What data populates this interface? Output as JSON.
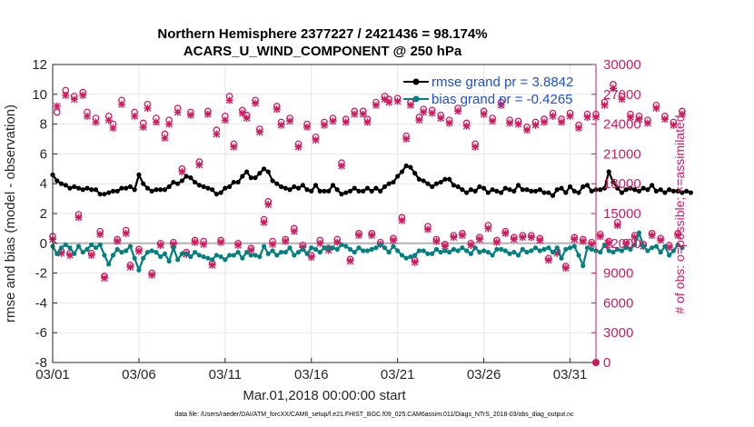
{
  "chart_data": {
    "type": "line",
    "title_line1": "Northern Hemisphere 2377227 / 2421436 = 98.174%",
    "title_line2": "ACARS_U_WIND_COMPONENT @ 250 hPa",
    "xlabel": "Mar.01,2018 00:00:00 start",
    "ylabel": "rmse and bias (model - observation)",
    "y2label": "# of obs: o=possible; ×=assimilated",
    "footnote": "data file: /Users/raeder/DAI/ATM_forcXX/CAM6_setup/f.e21.FHIST_BGC.f09_025.CAM6assim.011/Diags_NTrS_2018-03/obs_diag_output.nc",
    "xlim": [
      0,
      31.5
    ],
    "ylim": [
      -8,
      12
    ],
    "y2lim": [
      0,
      30000
    ],
    "xticks": [
      0,
      5,
      10,
      15,
      20,
      25,
      30
    ],
    "xtick_labels": [
      "03/01",
      "03/06",
      "03/11",
      "03/16",
      "03/21",
      "03/26",
      "03/31"
    ],
    "yticks": [
      -8,
      -6,
      -4,
      -2,
      0,
      2,
      4,
      6,
      8,
      10,
      12
    ],
    "ytick_labels": [
      "-8",
      "-6",
      "-4",
      "-2",
      "0",
      "2",
      "4",
      "6",
      "8",
      "10",
      "12"
    ],
    "y2ticks": [
      0,
      3000,
      6000,
      9000,
      12000,
      15000,
      18000,
      21000,
      24000,
      27000,
      30000
    ],
    "y2tick_labels": [
      "0",
      "3000",
      "6000",
      "9000",
      "12000",
      "15000",
      "18000",
      "21000",
      "24000",
      "27000",
      "30000"
    ],
    "legend": [
      "rmse grand pr = 3.8842",
      "bias grand pr = -0.4265"
    ],
    "colors": {
      "rmse": "#000000",
      "bias": "#008080",
      "obs": "#d11a5e",
      "axis": "#262626",
      "grid": "#e6e6e6",
      "zero": "#b3b3b3"
    },
    "time_step_days": 0.25,
    "series": [
      {
        "name": "rmse",
        "values": [
          4.6,
          4.2,
          4.0,
          3.9,
          3.7,
          3.8,
          3.7,
          3.6,
          3.7,
          3.6,
          3.6,
          3.3,
          3.3,
          3.4,
          3.5,
          3.5,
          3.7,
          3.7,
          3.8,
          3.6,
          4.6,
          4.0,
          3.7,
          3.5,
          3.6,
          3.6,
          3.6,
          3.8,
          4.1,
          4.0,
          4.2,
          4.5,
          4.4,
          4.1,
          3.9,
          3.8,
          3.7,
          3.6,
          3.3,
          3.4,
          3.7,
          3.8,
          4.1,
          4.1,
          4.5,
          4.8,
          4.4,
          4.4,
          4.7,
          5.0,
          4.8,
          4.2,
          4.0,
          3.8,
          3.7,
          3.6,
          3.8,
          3.7,
          3.9,
          3.6,
          3.5,
          3.9,
          3.5,
          3.5,
          3.5,
          3.9,
          3.6,
          3.3,
          3.4,
          3.5,
          3.7,
          3.5,
          3.5,
          3.7,
          3.5,
          3.7,
          3.5,
          3.8,
          4.0,
          4.1,
          4.5,
          4.8,
          5.2,
          5.1,
          4.7,
          4.3,
          4.2,
          4.0,
          3.8,
          4.0,
          4.1,
          4.3,
          4.3,
          3.9,
          3.8,
          3.6,
          3.4,
          3.6,
          3.5,
          3.8,
          3.7,
          3.4,
          3.6,
          3.5,
          3.4,
          3.7,
          3.6,
          3.5,
          3.9,
          3.6,
          3.6,
          3.5,
          3.5,
          3.6,
          3.4,
          3.4,
          3.2,
          3.6,
          3.7,
          3.4,
          3.8,
          3.5,
          3.4,
          3.8,
          3.9,
          3.5,
          3.6,
          3.6,
          3.7,
          4.8,
          4.1,
          3.7,
          3.4,
          3.6,
          3.7,
          3.6,
          3.5,
          3.7,
          3.6,
          3.9,
          3.5,
          3.6,
          3.4,
          3.6,
          3.5,
          3.5,
          3.4,
          3.5,
          3.4
        ]
      },
      {
        "name": "bias",
        "values": [
          -0.2,
          -0.7,
          -0.3,
          -0.1,
          -0.3,
          -0.7,
          -0.2,
          -0.6,
          -0.4,
          -0.1,
          -0.3,
          -0.1,
          -0.8,
          -1.4,
          -0.8,
          -0.4,
          -0.6,
          -0.5,
          -0.2,
          -1.0,
          -1.8,
          -1.0,
          -0.6,
          -0.5,
          -0.6,
          -0.9,
          -0.7,
          -1.2,
          -0.3,
          -1.1,
          -0.7,
          -0.7,
          -0.9,
          -0.6,
          -0.8,
          -0.9,
          -1.0,
          -1.1,
          -0.8,
          -0.9,
          -1.1,
          -0.8,
          -0.8,
          -0.6,
          -1.0,
          -0.6,
          -0.8,
          -0.8,
          -0.9,
          -0.2,
          -0.7,
          -0.5,
          -0.8,
          -0.6,
          -0.6,
          -0.3,
          -0.8,
          -0.6,
          -0.4,
          -0.7,
          -0.3,
          -0.4,
          -0.6,
          -0.3,
          -0.3,
          -0.3,
          -0.4,
          -0.1,
          -0.2,
          -0.4,
          -0.6,
          -0.3,
          -0.5,
          -0.5,
          -0.4,
          -0.3,
          -0.1,
          -0.3,
          -0.6,
          -0.2,
          -0.5,
          -0.8,
          -1.0,
          -0.9,
          -0.8,
          -0.5,
          -0.5,
          -0.7,
          -0.7,
          -0.4,
          -0.6,
          -0.5,
          -0.6,
          -0.4,
          -0.5,
          -0.3,
          -0.5,
          -0.7,
          -0.3,
          -0.6,
          -0.5,
          -0.6,
          -0.8,
          -0.4,
          -0.4,
          -0.5,
          -0.7,
          -0.6,
          -0.8,
          -0.4,
          -0.6,
          -0.5,
          -0.3,
          -0.5,
          -0.4,
          -0.3,
          -0.6,
          -0.3,
          -1.0,
          -0.4,
          -0.3,
          -0.2,
          -0.8,
          -1.5,
          -0.3,
          -0.4,
          -0.5,
          -0.6,
          -0.1,
          -0.5,
          -0.6,
          -0.4,
          -0.5,
          -0.3,
          -0.4,
          -0.1,
          0.7,
          -0.2,
          -0.5,
          -0.3,
          -0.2,
          -0.6,
          -0.2,
          -0.8,
          -0.5,
          -0.1,
          -0.3
        ]
      },
      {
        "name": "obs_possible",
        "values": [
          12700,
          25200,
          11200,
          27400,
          11000,
          26800,
          14900,
          27200,
          25200,
          11000,
          24600,
          13200,
          8700,
          24800,
          24000,
          12400,
          26400,
          13300,
          9800,
          25200,
          11400,
          24100,
          26000,
          9000,
          24600,
          12000,
          23000,
          24400,
          12100,
          25600,
          19500,
          11100,
          25200,
          12300,
          20200,
          12200,
          25300,
          10000,
          23400,
          12300,
          24800,
          26800,
          22000,
          12000,
          25400,
          24900,
          11500,
          26400,
          23500,
          14400,
          16200,
          12200,
          25800,
          24200,
          12400,
          24600,
          13500,
          22000,
          11800,
          24000,
          10800,
          22700,
          12300,
          24200,
          11500,
          24600,
          12400,
          20100,
          24500,
          10400,
          25300,
          13000,
          25300,
          24500,
          13000,
          26200,
          12100,
          26800,
          26500,
          12500,
          26600,
          14600,
          22800,
          26200,
          10300,
          24700,
          25500,
          13700,
          25400,
          12400,
          24900,
          11900,
          24400,
          12800,
          25600,
          13000,
          24100,
          12000,
          22000,
          12600,
          25300,
          13800,
          24600,
          12300,
          26200,
          13200,
          24400,
          12600,
          24300,
          12800,
          23700,
          12800,
          24200,
          12500,
          24500,
          10500,
          25100,
          11200,
          24500,
          9700,
          25100,
          12600,
          23900,
          12400,
          25000,
          12100,
          25000,
          12900,
          26200,
          12200,
          28000,
          14100,
          26800,
          12100,
          25000,
          12800,
          24800,
          11900,
          24400,
          13000,
          25900,
          12500,
          24800,
          11800,
          24200,
          13000,
          25300
        ]
      },
      {
        "name": "obs_assimilated",
        "values": [
          12400,
          25800,
          11000,
          26900,
          10800,
          26500,
          14600,
          26900,
          24800,
          10800,
          24200,
          12900,
          8500,
          24400,
          23600,
          12200,
          26000,
          13000,
          9600,
          24800,
          11200,
          23700,
          25600,
          8800,
          24200,
          11800,
          22600,
          24000,
          11900,
          25200,
          19200,
          10900,
          24900,
          12100,
          19900,
          11900,
          25000,
          9800,
          23000,
          12100,
          24400,
          26400,
          21700,
          11800,
          25100,
          24600,
          11300,
          26100,
          23200,
          14100,
          15900,
          11900,
          25500,
          23900,
          12200,
          24300,
          13200,
          21700,
          11600,
          23700,
          10600,
          22400,
          12000,
          23900,
          11300,
          24300,
          12100,
          19800,
          24200,
          10200,
          25000,
          12800,
          25000,
          24200,
          12800,
          25900,
          11900,
          26500,
          26200,
          12300,
          26300,
          14300,
          22500,
          25900,
          10100,
          24400,
          25200,
          13400,
          25100,
          12200,
          24600,
          11700,
          24100,
          12600,
          25300,
          12800,
          23800,
          11800,
          21700,
          12400,
          25000,
          13500,
          24300,
          12100,
          25900,
          13000,
          24100,
          12400,
          24000,
          12600,
          23400,
          12600,
          23900,
          12300,
          24200,
          10300,
          24800,
          11000,
          24200,
          9500,
          24800,
          12400,
          23600,
          12200,
          24700,
          11900,
          24700,
          12700,
          25900,
          12000,
          27600,
          13800,
          26500,
          11900,
          24700,
          12600,
          24500,
          11700,
          24100,
          12800,
          25600,
          12300,
          24500,
          11600,
          23900,
          12800,
          25000
        ]
      }
    ]
  }
}
